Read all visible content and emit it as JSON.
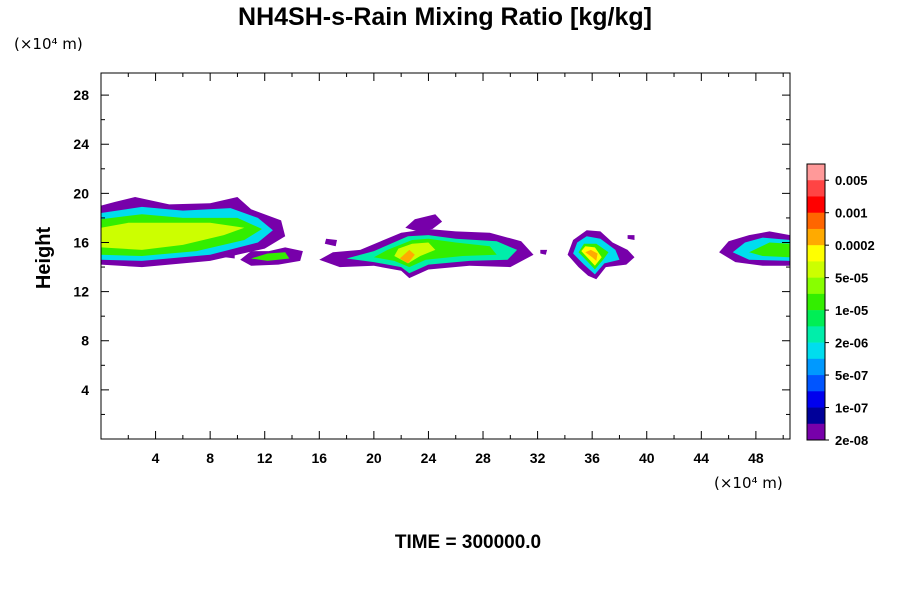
{
  "chart_data": {
    "type": "heatmap",
    "title": "NH4SH-s-Rain Mixing Ratio [kg/kg]",
    "ylabel": "Height",
    "x_unit": "(×10⁴ m)",
    "y_unit": "(×10⁴ m)",
    "xlim": [
      0,
      50.5
    ],
    "ylim": [
      0,
      29.8
    ],
    "x_ticks": [
      4,
      8,
      12,
      16,
      20,
      24,
      28,
      32,
      36,
      40,
      44,
      48
    ],
    "y_ticks": [
      4,
      8,
      12,
      16,
      20,
      24,
      28
    ],
    "time_label": "TIME = 300000.0",
    "colorbar": {
      "levels_labels": [
        "0.005",
        "0.001",
        "0.0002",
        "5e-05",
        "1e-05",
        "2e-06",
        "5e-07",
        "1e-07",
        "2e-08"
      ],
      "colors": [
        "#ff9999",
        "#ff4444",
        "#ff0000",
        "#ff6600",
        "#ffaa00",
        "#ffff00",
        "#ccff00",
        "#88ff00",
        "#33ee00",
        "#00ee55",
        "#00eeaa",
        "#00ddee",
        "#0099ff",
        "#0055ff",
        "#0000ee",
        "#000099",
        "#7700aa"
      ]
    },
    "regions": [
      {
        "name": "cloud-a",
        "level": 0,
        "points": [
          [
            0,
            14.2
          ],
          [
            3,
            14
          ],
          [
            8,
            14.5
          ],
          [
            12,
            15.5
          ],
          [
            13.5,
            16.5
          ],
          [
            13.2,
            17.8
          ],
          [
            11,
            18.7
          ],
          [
            10,
            19.7
          ],
          [
            8,
            19.2
          ],
          [
            5,
            19.1
          ],
          [
            2.5,
            19.7
          ],
          [
            1,
            19.3
          ],
          [
            0,
            19
          ]
        ]
      },
      {
        "name": "cloud-a",
        "level": 5,
        "points": [
          [
            0,
            14.6
          ],
          [
            3,
            14.5
          ],
          [
            8,
            15
          ],
          [
            11.5,
            16
          ],
          [
            12.6,
            17
          ],
          [
            11.5,
            18
          ],
          [
            9.5,
            18.8
          ],
          [
            6,
            18.6
          ],
          [
            3,
            18.9
          ],
          [
            0,
            18.4
          ]
        ]
      },
      {
        "name": "cloud-a",
        "level": 8,
        "points": [
          [
            0,
            15
          ],
          [
            3,
            14.9
          ],
          [
            7,
            15.3
          ],
          [
            10.5,
            16.2
          ],
          [
            11.8,
            17.1
          ],
          [
            10,
            18
          ],
          [
            6,
            18
          ],
          [
            3,
            18.3
          ],
          [
            0,
            17.9
          ]
        ]
      },
      {
        "name": "cloud-a",
        "level": 10,
        "points": [
          [
            0,
            15.6
          ],
          [
            3,
            15.4
          ],
          [
            6,
            15.8
          ],
          [
            9,
            16.6
          ],
          [
            10.5,
            17.2
          ],
          [
            8,
            17.6
          ],
          [
            5,
            17.6
          ],
          [
            2,
            17.6
          ],
          [
            0,
            17.2
          ]
        ]
      },
      {
        "name": "cloud-b",
        "level": 0,
        "points": [
          [
            10.2,
            14.6
          ],
          [
            11,
            14.1
          ],
          [
            13,
            14.2
          ],
          [
            14.6,
            14.5
          ],
          [
            14.8,
            15.3
          ],
          [
            13.5,
            15.6
          ],
          [
            12.3,
            15.3
          ],
          [
            11,
            15.3
          ]
        ]
      },
      {
        "name": "cloud-b",
        "level": 8,
        "points": [
          [
            11,
            14.7
          ],
          [
            12.2,
            14.5
          ],
          [
            13.8,
            14.7
          ],
          [
            13.5,
            15.2
          ],
          [
            12.2,
            15.1
          ]
        ]
      },
      {
        "name": "cloud-c",
        "level": 0,
        "points": [
          [
            16,
            14.6
          ],
          [
            17.5,
            14
          ],
          [
            20,
            14.1
          ],
          [
            22,
            13.7
          ],
          [
            22.6,
            13.1
          ],
          [
            24,
            13.8
          ],
          [
            27,
            14.1
          ],
          [
            30,
            14
          ],
          [
            31.7,
            15
          ],
          [
            30.8,
            16.1
          ],
          [
            28.5,
            16.8
          ],
          [
            26,
            16.9
          ],
          [
            24,
            17.1
          ],
          [
            22,
            16.8
          ],
          [
            19,
            15.4
          ],
          [
            17,
            15.2
          ]
        ]
      },
      {
        "name": "cloud-c",
        "level": 6,
        "points": [
          [
            18,
            14.7
          ],
          [
            20,
            14.4
          ],
          [
            22,
            14
          ],
          [
            22.6,
            13.5
          ],
          [
            24,
            14.2
          ],
          [
            27,
            14.5
          ],
          [
            29.8,
            14.6
          ],
          [
            30.5,
            15.4
          ],
          [
            29,
            16.1
          ],
          [
            26,
            16.3
          ],
          [
            24,
            16.6
          ],
          [
            22.5,
            16.5
          ],
          [
            20,
            15.3
          ]
        ]
      },
      {
        "name": "cloud-c",
        "level": 8,
        "points": [
          [
            20,
            14.8
          ],
          [
            21.5,
            14.5
          ],
          [
            22.6,
            14
          ],
          [
            23.8,
            14.6
          ],
          [
            26.5,
            14.9
          ],
          [
            29,
            15
          ],
          [
            28.5,
            15.7
          ],
          [
            26,
            16
          ],
          [
            24,
            16.3
          ],
          [
            22.8,
            16.2
          ],
          [
            21,
            15.4
          ]
        ]
      },
      {
        "name": "cloud-c",
        "level": 10,
        "points": [
          [
            21.5,
            14.9
          ],
          [
            22.5,
            14.3
          ],
          [
            23.4,
            14.9
          ],
          [
            24.5,
            15.4
          ],
          [
            24,
            16
          ],
          [
            22.8,
            15.9
          ],
          [
            21.8,
            15.5
          ]
        ]
      },
      {
        "name": "cloud-c",
        "level": 12,
        "points": [
          [
            21.9,
            14.7
          ],
          [
            22.5,
            14.3
          ],
          [
            23,
            15
          ],
          [
            22.6,
            15.4
          ]
        ]
      },
      {
        "name": "cloud-d",
        "level": 0,
        "points": [
          [
            34.2,
            15
          ],
          [
            35,
            14
          ],
          [
            35.7,
            13.3
          ],
          [
            36.3,
            13
          ],
          [
            37,
            14
          ],
          [
            38.5,
            14.2
          ],
          [
            39.1,
            14.8
          ],
          [
            38.6,
            15.4
          ],
          [
            37.5,
            16
          ],
          [
            36.6,
            16.9
          ],
          [
            35.6,
            17
          ],
          [
            34.6,
            16.2
          ]
        ]
      },
      {
        "name": "cloud-d",
        "level": 5,
        "points": [
          [
            34.6,
            15.1
          ],
          [
            35.4,
            14.2
          ],
          [
            36.2,
            13.4
          ],
          [
            36.9,
            14.3
          ],
          [
            38,
            14.6
          ],
          [
            37.7,
            15.4
          ],
          [
            36.6,
            16.3
          ],
          [
            35.6,
            16.5
          ],
          [
            34.9,
            16
          ]
        ]
      },
      {
        "name": "cloud-d",
        "level": 8,
        "points": [
          [
            35,
            15.2
          ],
          [
            35.7,
            14.4
          ],
          [
            36.2,
            13.8
          ],
          [
            36.8,
            14.6
          ],
          [
            37.2,
            15.2
          ],
          [
            36.3,
            15.9
          ],
          [
            35.4,
            15.9
          ]
        ]
      },
      {
        "name": "cloud-d",
        "level": 11,
        "points": [
          [
            35.2,
            15.3
          ],
          [
            35.8,
            14.6
          ],
          [
            36.2,
            14.1
          ],
          [
            36.7,
            14.8
          ],
          [
            36.2,
            15.6
          ],
          [
            35.5,
            15.7
          ]
        ]
      },
      {
        "name": "cloud-d",
        "level": 12,
        "points": [
          [
            35.5,
            15.2
          ],
          [
            36,
            14.8
          ],
          [
            36.3,
            14.5
          ],
          [
            36.4,
            15.1
          ],
          [
            35.9,
            15.4
          ]
        ]
      },
      {
        "name": "cloud-e",
        "level": 0,
        "points": [
          [
            45.3,
            15.2
          ],
          [
            46.5,
            14.4
          ],
          [
            48.5,
            14.1
          ],
          [
            50.5,
            14.1
          ],
          [
            50.5,
            16.6
          ],
          [
            49,
            16.9
          ],
          [
            47.5,
            16.6
          ],
          [
            46,
            16.1
          ]
        ]
      },
      {
        "name": "cloud-e",
        "level": 5,
        "points": [
          [
            46.3,
            15.2
          ],
          [
            47.5,
            14.6
          ],
          [
            50.5,
            14.5
          ],
          [
            50.5,
            16.2
          ],
          [
            48.5,
            16.4
          ],
          [
            47.2,
            16
          ]
        ]
      },
      {
        "name": "cloud-e",
        "level": 8,
        "points": [
          [
            47.5,
            15.2
          ],
          [
            48.5,
            14.9
          ],
          [
            50.5,
            14.8
          ],
          [
            50.5,
            15.9
          ],
          [
            49,
            16
          ]
        ]
      },
      {
        "name": "patch-top",
        "level": 0,
        "points": [
          [
            22.3,
            17.2
          ],
          [
            23,
            17.9
          ],
          [
            24.5,
            18.3
          ],
          [
            25,
            17.7
          ],
          [
            24.3,
            17.1
          ],
          [
            23.2,
            16.9
          ]
        ]
      },
      {
        "name": "patch-small",
        "level": 0,
        "points": [
          [
            16.4,
            15.9
          ],
          [
            17.2,
            15.7
          ],
          [
            17.3,
            16.2
          ],
          [
            16.5,
            16.3
          ]
        ]
      },
      {
        "name": "patch-small",
        "level": 0,
        "points": [
          [
            32.2,
            15.1
          ],
          [
            32.6,
            15
          ],
          [
            32.7,
            15.4
          ],
          [
            32.2,
            15.4
          ]
        ]
      },
      {
        "name": "patch-small",
        "level": 0,
        "points": [
          [
            9.1,
            14.8
          ],
          [
            9.8,
            14.7
          ],
          [
            9.8,
            15.1
          ],
          [
            9.1,
            15.1
          ]
        ]
      },
      {
        "name": "patch-small",
        "level": 0,
        "points": [
          [
            38.6,
            16.3
          ],
          [
            39.1,
            16.2
          ],
          [
            39.1,
            16.6
          ],
          [
            38.6,
            16.6
          ]
        ]
      }
    ]
  }
}
